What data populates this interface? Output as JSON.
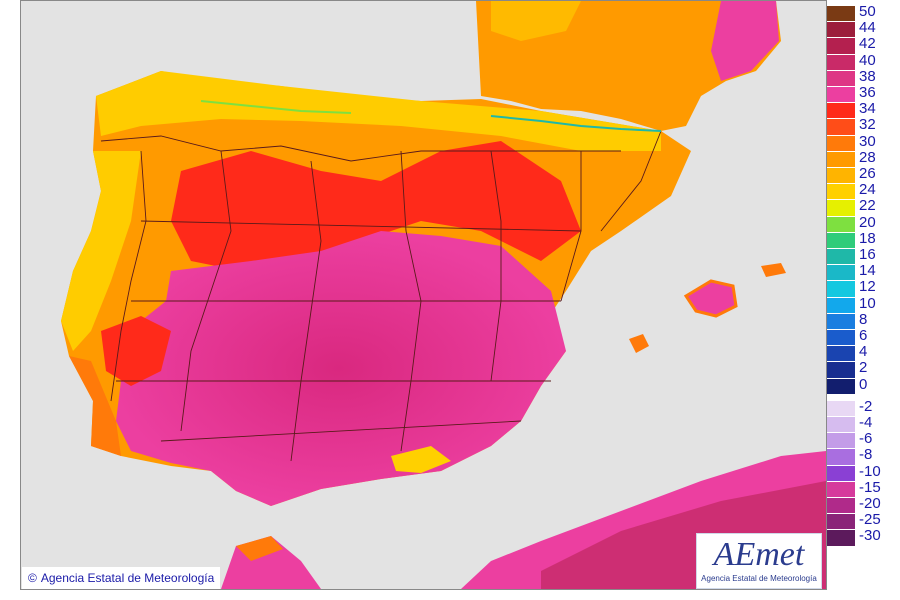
{
  "map": {
    "credit": "Agencia Estatal de Meteorología",
    "credit_symbol": "©",
    "logo_text": "AEmet",
    "logo_subtitle": "Agencia Estatal de Meteorología",
    "colors": {
      "sea": "#e3e3e3",
      "land_low": "#ff9a00",
      "land_mid": "#ff3b1a",
      "land_hot": "#e8388f",
      "land_mild": "#ffcc00",
      "border_lines": "#5a1a1a"
    }
  },
  "legend": {
    "warm_steps": [
      {
        "label": "50",
        "color": "#7a3a14"
      },
      {
        "label": "44",
        "color": "#9c1e3b"
      },
      {
        "label": "42",
        "color": "#b4204f"
      },
      {
        "label": "40",
        "color": "#c92a68"
      },
      {
        "label": "38",
        "color": "#de3685"
      },
      {
        "label": "36",
        "color": "#ec3fa0"
      },
      {
        "label": "34",
        "color": "#ff2a1a"
      },
      {
        "label": "32",
        "color": "#ff4d18"
      },
      {
        "label": "30",
        "color": "#ff7a0a"
      },
      {
        "label": "28",
        "color": "#ff9a00"
      },
      {
        "label": "26",
        "color": "#ffb400"
      },
      {
        "label": "24",
        "color": "#ffd000"
      },
      {
        "label": "22",
        "color": "#e6f000"
      },
      {
        "label": "20",
        "color": "#7ee040"
      },
      {
        "label": "18",
        "color": "#2fcc7a"
      },
      {
        "label": "16",
        "color": "#1fb8a8"
      },
      {
        "label": "14",
        "color": "#1ab8c8"
      },
      {
        "label": "12",
        "color": "#14c8e0"
      },
      {
        "label": "10",
        "color": "#12a8ec"
      },
      {
        "label": "8",
        "color": "#1a7ee0"
      },
      {
        "label": "6",
        "color": "#1a5ccc"
      },
      {
        "label": "4",
        "color": "#1a44b0"
      },
      {
        "label": "2",
        "color": "#182e90"
      },
      {
        "label": "0",
        "color": "#121e6e"
      }
    ],
    "cold_steps": [
      {
        "label": "-2",
        "color": "#e8d8f4"
      },
      {
        "label": "-4",
        "color": "#d6bcef"
      },
      {
        "label": "-6",
        "color": "#c39ce8"
      },
      {
        "label": "-8",
        "color": "#a96ee0"
      },
      {
        "label": "-10",
        "color": "#8a40d4"
      },
      {
        "label": "-15",
        "color": "#d63a9c"
      },
      {
        "label": "-20",
        "color": "#b02a8a"
      },
      {
        "label": "-25",
        "color": "#8a2478"
      },
      {
        "label": "-30",
        "color": "#5c1a5c"
      }
    ]
  }
}
